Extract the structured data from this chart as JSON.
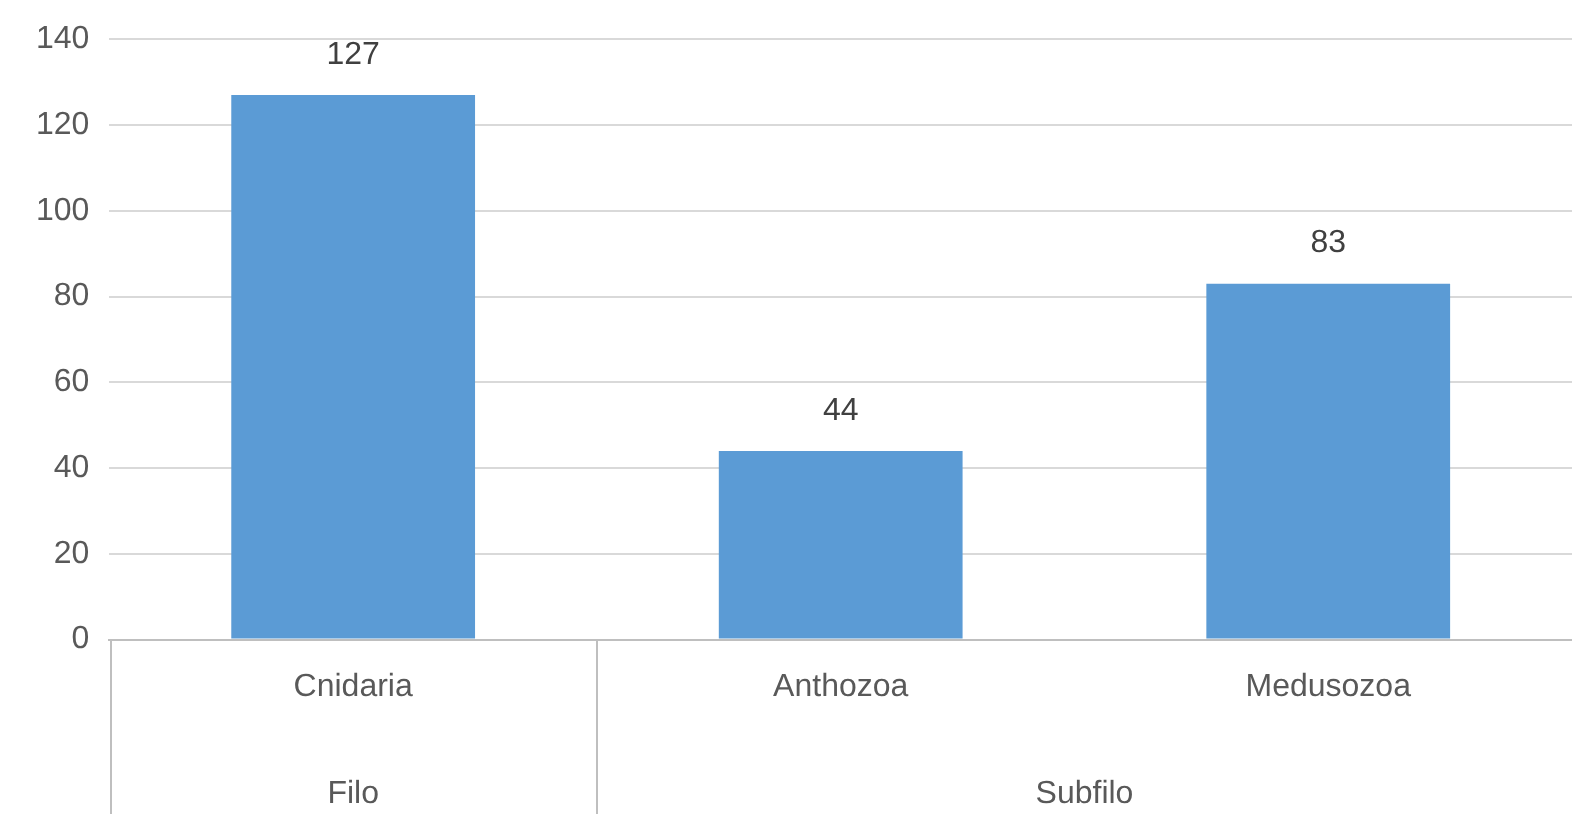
{
  "chart_data": {
    "type": "bar",
    "categories": [
      "Cnidaria",
      "Anthozoa",
      "Medusozoa"
    ],
    "values": [
      127,
      44,
      83
    ],
    "color": "#5b9bd5",
    "ylim": [
      0,
      140
    ],
    "yticks": [
      0,
      20,
      40,
      60,
      80,
      100,
      120,
      140
    ],
    "grid": "y",
    "data_labels": true,
    "legend": false,
    "annotations": [
      "Filo",
      "Subfilo"
    ]
  }
}
